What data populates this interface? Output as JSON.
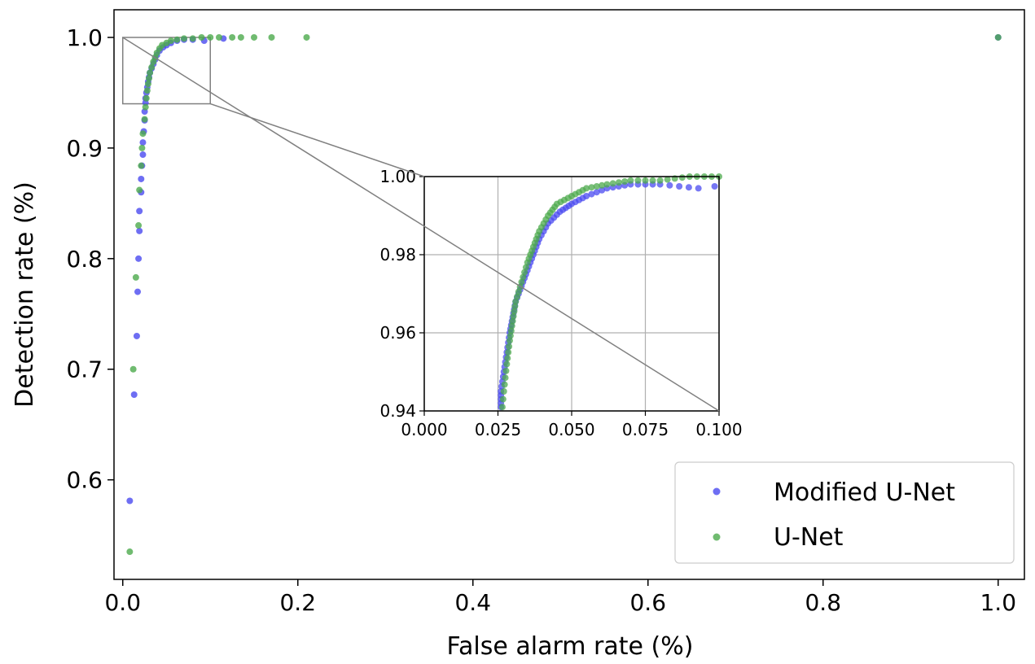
{
  "chart_data": {
    "type": "scatter",
    "title": "",
    "xlabel": "False alarm rate (%)",
    "ylabel": "Detection rate (%)",
    "xlim": [
      -0.01,
      1.03
    ],
    "ylim": [
      0.51,
      1.025
    ],
    "xticks": [
      0.0,
      0.2,
      0.4,
      0.6,
      0.8,
      1.0
    ],
    "xtick_labels": [
      "0.0",
      "0.2",
      "0.4",
      "0.6",
      "0.8",
      "1.0"
    ],
    "yticks": [
      0.6,
      0.7,
      0.8,
      0.9,
      1.0
    ],
    "ytick_labels": [
      "0.6",
      "0.7",
      "0.8",
      "0.9",
      "1.0"
    ],
    "grid": false,
    "legend_position": "lower-right",
    "series": [
      {
        "name": "Modified U-Net",
        "color": "#4a4af0",
        "points": [
          [
            0.008,
            0.581
          ],
          [
            0.013,
            0.677
          ],
          [
            0.016,
            0.73
          ],
          [
            0.017,
            0.77
          ],
          [
            0.018,
            0.8
          ],
          [
            0.019,
            0.825
          ],
          [
            0.019,
            0.843
          ],
          [
            0.021,
            0.86
          ],
          [
            0.021,
            0.872
          ],
          [
            0.022,
            0.884
          ],
          [
            0.023,
            0.894
          ],
          [
            0.023,
            0.905
          ],
          [
            0.024,
            0.915
          ],
          [
            0.025,
            0.925
          ],
          [
            0.025,
            0.933
          ],
          [
            0.026,
            0.941
          ],
          [
            0.026,
            0.945
          ],
          [
            0.027,
            0.95
          ],
          [
            0.028,
            0.955
          ],
          [
            0.029,
            0.96
          ],
          [
            0.03,
            0.964
          ],
          [
            0.031,
            0.968
          ],
          [
            0.033,
            0.972
          ],
          [
            0.035,
            0.976
          ],
          [
            0.037,
            0.98
          ],
          [
            0.039,
            0.984
          ],
          [
            0.042,
            0.988
          ],
          [
            0.046,
            0.991
          ],
          [
            0.05,
            0.993
          ],
          [
            0.055,
            0.995
          ],
          [
            0.062,
            0.997
          ],
          [
            0.07,
            0.998
          ],
          [
            0.08,
            0.998
          ],
          [
            0.093,
            0.997
          ],
          [
            0.115,
            0.999
          ],
          [
            1.0,
            1.0
          ]
        ]
      },
      {
        "name": "U-Net",
        "color": "#4caa4c",
        "points": [
          [
            0.008,
            0.535
          ],
          [
            0.012,
            0.7
          ],
          [
            0.015,
            0.783
          ],
          [
            0.018,
            0.83
          ],
          [
            0.019,
            0.862
          ],
          [
            0.021,
            0.884
          ],
          [
            0.022,
            0.9
          ],
          [
            0.023,
            0.913
          ],
          [
            0.025,
            0.926
          ],
          [
            0.026,
            0.937
          ],
          [
            0.027,
            0.945
          ],
          [
            0.028,
            0.952
          ],
          [
            0.029,
            0.958
          ],
          [
            0.03,
            0.963
          ],
          [
            0.031,
            0.968
          ],
          [
            0.033,
            0.973
          ],
          [
            0.035,
            0.978
          ],
          [
            0.037,
            0.982
          ],
          [
            0.039,
            0.986
          ],
          [
            0.042,
            0.99
          ],
          [
            0.045,
            0.993
          ],
          [
            0.05,
            0.995
          ],
          [
            0.055,
            0.997
          ],
          [
            0.062,
            0.998
          ],
          [
            0.07,
            0.999
          ],
          [
            0.08,
            0.999
          ],
          [
            0.09,
            1.0
          ],
          [
            0.1,
            1.0
          ],
          [
            0.11,
            1.0
          ],
          [
            0.125,
            1.0
          ],
          [
            0.135,
            1.0
          ],
          [
            0.15,
            1.0
          ],
          [
            0.17,
            1.0
          ],
          [
            0.21,
            1.0
          ],
          [
            1.0,
            1.0
          ]
        ]
      }
    ],
    "inset": {
      "xlim": [
        0.0,
        0.1
      ],
      "ylim": [
        0.94,
        1.0
      ],
      "xticks": [
        0.0,
        0.025,
        0.05,
        0.075,
        0.1
      ],
      "xtick_labels": [
        "0.000",
        "0.025",
        "0.050",
        "0.075",
        "0.100"
      ],
      "yticks": [
        0.94,
        0.96,
        0.98,
        1.0
      ],
      "ytick_labels": [
        "0.94",
        "0.96",
        "0.98",
        "1.00"
      ],
      "grid": true,
      "zoom_region": {
        "x": [
          0.0,
          0.1
        ],
        "y": [
          0.94,
          1.0
        ]
      }
    }
  }
}
